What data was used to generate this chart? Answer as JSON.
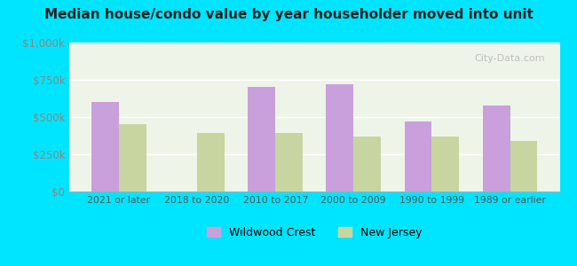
{
  "title": "Median house/condo value by year householder moved into unit",
  "categories": [
    "2021 or later",
    "2018 to 2020",
    "2010 to 2017",
    "2000 to 2009",
    "1990 to 1999",
    "1989 or earlier"
  ],
  "wildwood_crest": [
    600000,
    0,
    700000,
    720000,
    470000,
    580000
  ],
  "new_jersey": [
    450000,
    390000,
    390000,
    370000,
    370000,
    340000
  ],
  "bar_color_wc": "#c9a0dc",
  "bar_color_nj": "#c8d5a0",
  "background_color": "#00e5ff",
  "plot_bg_top": "#e8f5e0",
  "plot_bg_bottom": "#f5f5e8",
  "ylabel_color": "#888888",
  "ylim": [
    0,
    1000000
  ],
  "yticks": [
    0,
    250000,
    500000,
    750000,
    1000000
  ],
  "ytick_labels": [
    "$0",
    "$250k",
    "$500k",
    "$750k",
    "$1,000k"
  ],
  "legend_label_wc": "Wildwood Crest",
  "legend_label_nj": "New Jersey",
  "watermark": "City-Data.com"
}
